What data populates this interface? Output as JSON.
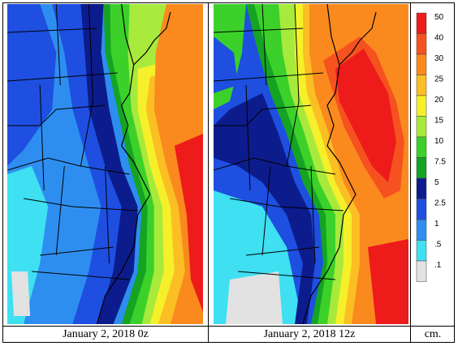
{
  "panels": [
    {
      "caption": "January 2, 2018 0z"
    },
    {
      "caption": "January 2, 2018 12z"
    }
  ],
  "units": "cm.",
  "legend": {
    "levels": [
      {
        "label": "50",
        "color": "#ee1b1b"
      },
      {
        "label": "40",
        "color": "#f5521f"
      },
      {
        "label": "30",
        "color": "#fa8a1e"
      },
      {
        "label": "25",
        "color": "#fbbf23"
      },
      {
        "label": "20",
        "color": "#f5f02a"
      },
      {
        "label": "15",
        "color": "#a8ea3c"
      },
      {
        "label": "10",
        "color": "#3bd12a"
      },
      {
        "label": "7.5",
        "color": "#15a324"
      },
      {
        "label": "5",
        "color": "#0d1c8c"
      },
      {
        "label": "2.5",
        "color": "#1e4fe0"
      },
      {
        "label": "1",
        "color": "#2e8ef0"
      },
      {
        "label": ".5",
        "color": "#3ee0f2"
      },
      {
        "label": ".1",
        "color": "#e2e2e2"
      }
    ]
  }
}
